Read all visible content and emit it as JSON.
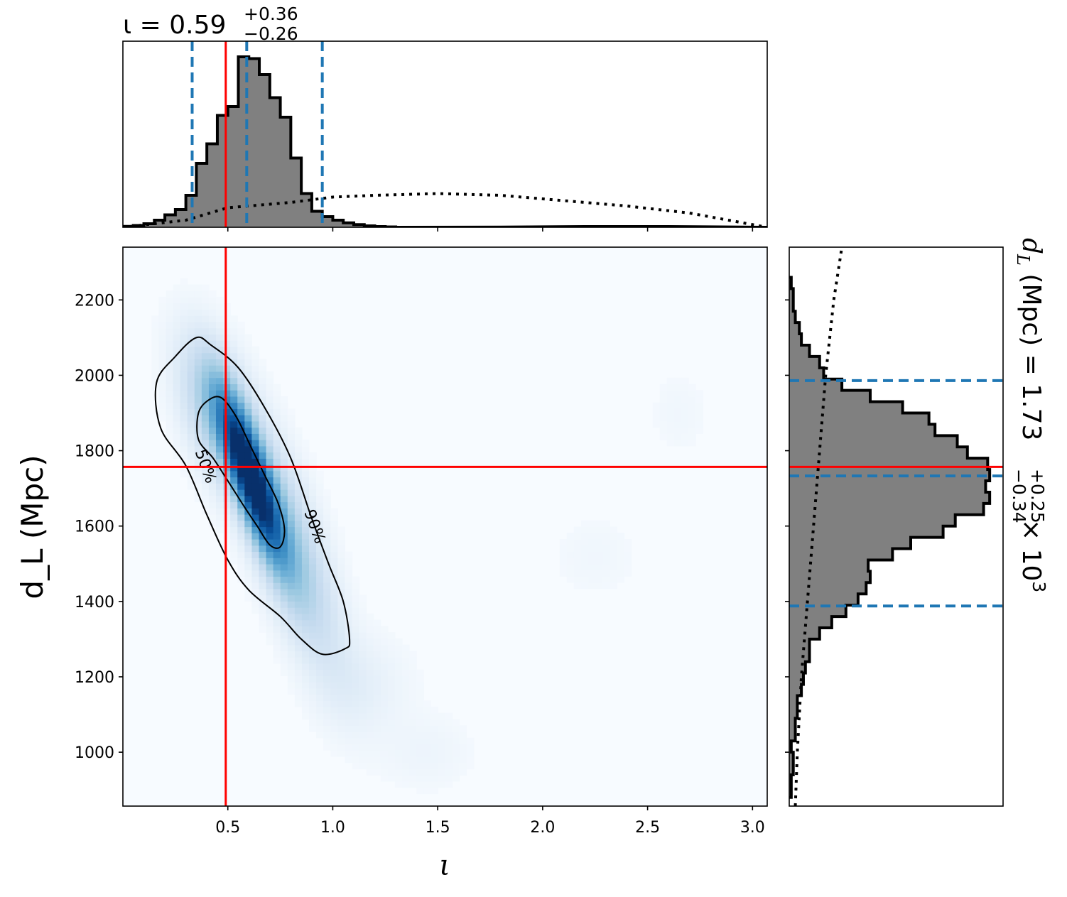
{
  "chart_data": {
    "type": "corner",
    "colors": {
      "truth": "#ff0000",
      "quantile": "#1f77b4",
      "hist_fill": "#808080",
      "hist_edge": "#000000",
      "density": "Blues"
    },
    "top_panel": {
      "type": "histogram",
      "title": {
        "main": "ι = 0.59",
        "plus": "+0.36",
        "minus": "−0.26"
      },
      "xlim": [
        0.0,
        3.07
      ],
      "bin_edges": [
        0.0,
        0.05,
        0.1,
        0.15,
        0.2,
        0.25,
        0.3,
        0.35,
        0.4,
        0.45,
        0.5,
        0.55,
        0.6,
        0.65,
        0.7,
        0.75,
        0.8,
        0.85,
        0.9,
        0.95,
        1.0,
        1.05,
        1.1,
        1.15,
        1.2,
        1.25,
        1.3
      ],
      "posterior_heights": [
        0.005,
        0.01,
        0.02,
        0.04,
        0.07,
        0.1,
        0.18,
        0.36,
        0.47,
        0.63,
        0.68,
        0.96,
        0.95,
        0.86,
        0.73,
        0.62,
        0.39,
        0.19,
        0.09,
        0.06,
        0.04,
        0.025,
        0.015,
        0.008,
        0.004,
        0.002
      ],
      "prior_curve": [
        [
          0.0,
          0.0
        ],
        [
          0.3,
          0.04
        ],
        [
          0.5,
          0.11
        ],
        [
          0.8,
          0.14
        ],
        [
          1.0,
          0.17
        ],
        [
          1.2,
          0.18
        ],
        [
          1.5,
          0.19
        ],
        [
          1.8,
          0.18
        ],
        [
          2.1,
          0.15
        ],
        [
          2.4,
          0.12
        ],
        [
          2.7,
          0.08
        ],
        [
          3.07,
          0.0
        ]
      ],
      "posterior_tail": [
        [
          1.3,
          0.002
        ],
        [
          1.8,
          0.003
        ],
        [
          2.2,
          0.006
        ],
        [
          2.6,
          0.006
        ],
        [
          3.07,
          0.002
        ]
      ],
      "truth": 0.49,
      "quantiles": [
        0.33,
        0.59,
        0.95
      ]
    },
    "main_panel": {
      "type": "density_contour",
      "xlabel": "ι",
      "ylabel": "d_L (Mpc)",
      "xlim": [
        0.0,
        3.07
      ],
      "ylim": [
        857,
        2340
      ],
      "x_ticks": [
        "0.5",
        "1.0",
        "1.5",
        "2.0",
        "2.5",
        "3.0"
      ],
      "x_tick_values": [
        0.5,
        1.0,
        1.5,
        2.0,
        2.5,
        3.0
      ],
      "y_ticks": [
        "1000",
        "1200",
        "1400",
        "1600",
        "1800",
        "2000",
        "2200"
      ],
      "y_tick_values": [
        1000,
        1200,
        1400,
        1600,
        1800,
        2000,
        2200
      ],
      "contour_labels": [
        "50%",
        "90%"
      ],
      "contour_50": [
        [
          0.47,
          1940
        ],
        [
          0.54,
          1890
        ],
        [
          0.61,
          1810
        ],
        [
          0.68,
          1730
        ],
        [
          0.74,
          1660
        ],
        [
          0.77,
          1590
        ],
        [
          0.75,
          1545
        ],
        [
          0.7,
          1550
        ],
        [
          0.64,
          1600
        ],
        [
          0.58,
          1650
        ],
        [
          0.5,
          1720
        ],
        [
          0.43,
          1780
        ],
        [
          0.36,
          1830
        ],
        [
          0.36,
          1900
        ],
        [
          0.41,
          1935
        ]
      ],
      "contour_90": [
        [
          0.35,
          2100
        ],
        [
          0.42,
          2080
        ],
        [
          0.55,
          2020
        ],
        [
          0.68,
          1910
        ],
        [
          0.8,
          1780
        ],
        [
          0.9,
          1620
        ],
        [
          0.98,
          1500
        ],
        [
          1.05,
          1400
        ],
        [
          1.08,
          1300
        ],
        [
          1.06,
          1275
        ],
        [
          0.95,
          1260
        ],
        [
          0.85,
          1300
        ],
        [
          0.75,
          1360
        ],
        [
          0.6,
          1430
        ],
        [
          0.5,
          1510
        ],
        [
          0.4,
          1630
        ],
        [
          0.3,
          1760
        ],
        [
          0.18,
          1860
        ],
        [
          0.16,
          1980
        ],
        [
          0.25,
          2050
        ]
      ],
      "density_blobs": [
        {
          "x": 0.61,
          "y": 1730,
          "sx": 0.1,
          "sy": 140,
          "rho": -0.8,
          "w": 1.0
        },
        {
          "x": 0.78,
          "y": 1560,
          "sx": 0.16,
          "sy": 210,
          "rho": -0.75,
          "w": 0.32
        },
        {
          "x": 0.45,
          "y": 1900,
          "sx": 0.12,
          "sy": 130,
          "rho": -0.5,
          "w": 0.3
        },
        {
          "x": 1.15,
          "y": 1180,
          "sx": 0.15,
          "sy": 90,
          "rho": 0.0,
          "w": 0.05
        },
        {
          "x": 1.45,
          "y": 1000,
          "sx": 0.15,
          "sy": 70,
          "rho": 0.0,
          "w": 0.03
        },
        {
          "x": 2.25,
          "y": 1520,
          "sx": 0.15,
          "sy": 80,
          "rho": 0.0,
          "w": 0.02
        },
        {
          "x": 2.65,
          "y": 1900,
          "sx": 0.1,
          "sy": 80,
          "rho": 0.0,
          "w": 0.02
        }
      ],
      "truth": {
        "x": 0.49,
        "y": 1757
      }
    },
    "right_panel": {
      "type": "histogram",
      "orientation": "horizontal",
      "title": {
        "main": "d",
        "sub": "L",
        "units": " (Mpc) = 1.73",
        "plus": "+0.25",
        "minus": "−0.34",
        "suffix": " × 10",
        "exp": "3"
      },
      "ylim": [
        857,
        2340
      ],
      "bin_edges": [
        880,
        910,
        940,
        970,
        1000,
        1030,
        1060,
        1090,
        1120,
        1150,
        1180,
        1210,
        1240,
        1270,
        1300,
        1330,
        1360,
        1390,
        1420,
        1450,
        1480,
        1510,
        1540,
        1570,
        1600,
        1630,
        1660,
        1690,
        1720,
        1750,
        1780,
        1810,
        1840,
        1870,
        1900,
        1930,
        1960,
        1990,
        2020,
        2050,
        2080,
        2110,
        2140,
        2170,
        2200,
        2230,
        2260
      ],
      "posterior_heights": [
        0.01,
        0.01,
        0.02,
        0.02,
        0.01,
        0.03,
        0.03,
        0.04,
        0.04,
        0.06,
        0.07,
        0.08,
        0.1,
        0.1,
        0.15,
        0.21,
        0.28,
        0.34,
        0.38,
        0.4,
        0.39,
        0.51,
        0.6,
        0.76,
        0.82,
        0.96,
        0.99,
        0.97,
        0.99,
        0.98,
        0.88,
        0.83,
        0.72,
        0.69,
        0.56,
        0.4,
        0.26,
        0.17,
        0.15,
        0.1,
        0.06,
        0.05,
        0.03,
        0.02,
        0.02,
        0.01
      ],
      "prior_curve": [
        [
          857,
          0.03
        ],
        [
          1000,
          0.04
        ],
        [
          1200,
          0.06
        ],
        [
          1400,
          0.09
        ],
        [
          1600,
          0.12
        ],
        [
          1800,
          0.15
        ],
        [
          2000,
          0.18
        ],
        [
          2200,
          0.22
        ],
        [
          2340,
          0.26
        ]
      ],
      "truth": 1757,
      "quantiles": [
        1388,
        1733,
        1986
      ]
    }
  }
}
